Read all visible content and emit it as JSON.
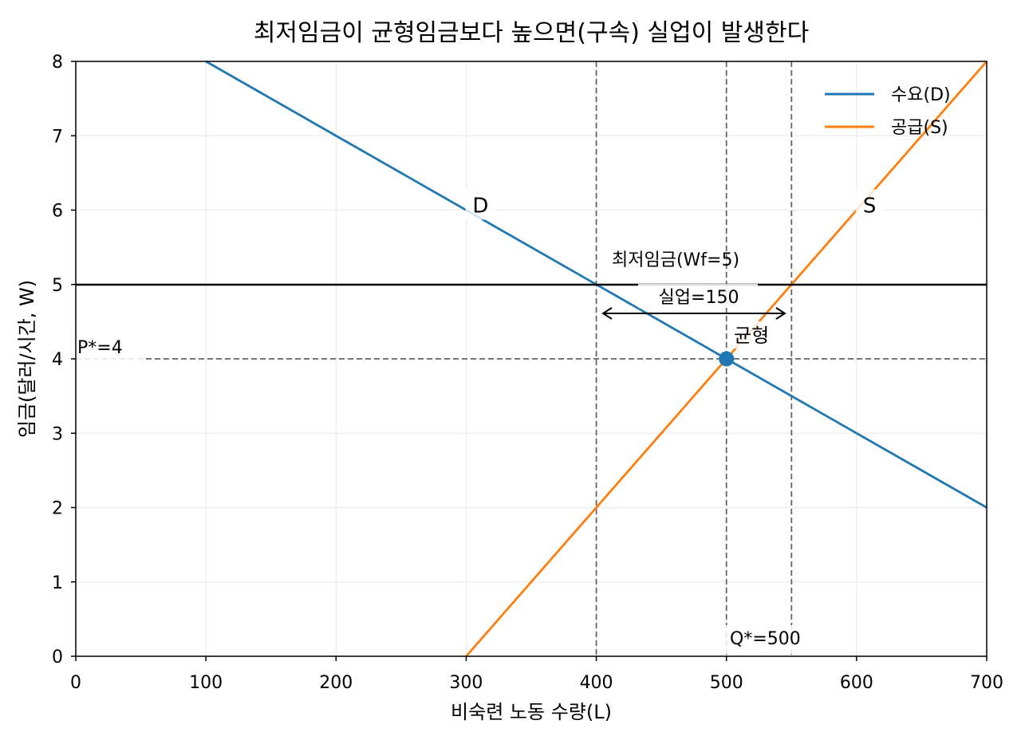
{
  "chart_data": {
    "type": "line",
    "title": "최저임금이 균형임금보다 높으면(구속) 실업이 발생한다",
    "xlabel": "비숙련 노동 수량(L)",
    "ylabel": "임금(달러/시간, W)",
    "xlim": [
      0,
      700
    ],
    "ylim": [
      0,
      8
    ],
    "x_ticks": [
      0,
      100,
      200,
      300,
      400,
      500,
      600,
      700
    ],
    "y_ticks": [
      0,
      1,
      2,
      3,
      4,
      5,
      6,
      7,
      8
    ],
    "grid": true,
    "legend_position": "top-right",
    "series": [
      {
        "name": "수요(D)",
        "color": "#1f77b4",
        "x": [
          100,
          700
        ],
        "y": [
          8,
          2
        ]
      },
      {
        "name": "공급(S)",
        "color": "#ff7f0e",
        "x": [
          300,
          700
        ],
        "y": [
          0,
          8
        ]
      }
    ],
    "curve_labels": [
      {
        "text": "D",
        "x": 300,
        "y": 6
      },
      {
        "text": "S",
        "x": 600,
        "y": 6
      }
    ],
    "minimum_wage": {
      "label": "최저임금(Wf=5)",
      "value": 5,
      "color": "#000000"
    },
    "unemployment": {
      "label": "실업=150",
      "from": 400,
      "to": 550
    },
    "equilibrium": {
      "label": "균형",
      "x": 500,
      "y": 4,
      "color": "#1f77b4"
    },
    "price_label": "P*=4",
    "quantity_label": "Q*=500",
    "reference_lines": {
      "horizontal": [
        4
      ],
      "vertical": [
        400,
        500,
        550
      ],
      "color": "#666666"
    }
  }
}
